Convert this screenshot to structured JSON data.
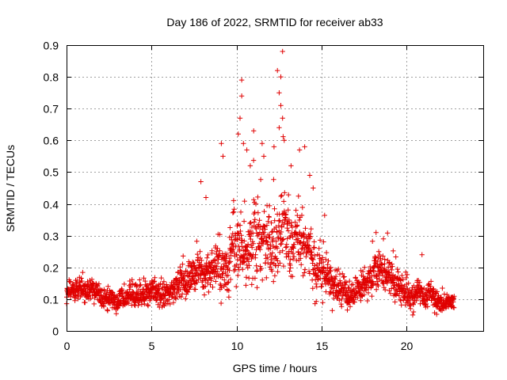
{
  "chart_data": {
    "type": "scatter",
    "title": "Day 186 of 2022, SRMTID for receiver ab33",
    "xlabel": "GPS time / hours",
    "ylabel": "SRMTID / TECUs",
    "xlim": [
      0,
      24.5
    ],
    "ylim": [
      0,
      0.9
    ],
    "xticks": [
      "0",
      "5",
      "10",
      "15",
      "20"
    ],
    "yticks": [
      "0",
      "0.1",
      "0.2",
      "0.3",
      "0.4",
      "0.5",
      "0.6",
      "0.7",
      "0.8",
      "0.9"
    ],
    "grid": true,
    "marker": "plus",
    "series_color": "#e00000",
    "profile": [
      [
        0.0,
        0.13,
        0.03
      ],
      [
        1.0,
        0.12,
        0.03
      ],
      [
        2.0,
        0.11,
        0.03
      ],
      [
        3.0,
        0.09,
        0.025
      ],
      [
        4.0,
        0.11,
        0.03
      ],
      [
        5.0,
        0.13,
        0.035
      ],
      [
        6.0,
        0.13,
        0.035
      ],
      [
        7.0,
        0.15,
        0.04
      ],
      [
        8.0,
        0.18,
        0.05
      ],
      [
        9.0,
        0.22,
        0.07
      ],
      [
        10.0,
        0.27,
        0.09
      ],
      [
        11.0,
        0.29,
        0.1
      ],
      [
        12.0,
        0.28,
        0.1
      ],
      [
        12.7,
        0.33,
        0.11
      ],
      [
        13.5,
        0.27,
        0.08
      ],
      [
        14.5,
        0.24,
        0.07
      ],
      [
        15.5,
        0.17,
        0.05
      ],
      [
        16.5,
        0.12,
        0.03
      ],
      [
        17.5,
        0.14,
        0.04
      ],
      [
        18.5,
        0.2,
        0.05
      ],
      [
        19.5,
        0.13,
        0.04
      ],
      [
        20.5,
        0.11,
        0.03
      ],
      [
        21.5,
        0.1,
        0.03
      ],
      [
        22.7,
        0.09,
        0.02
      ]
    ],
    "outliers": [
      [
        10.3,
        0.79
      ],
      [
        10.3,
        0.74
      ],
      [
        10.2,
        0.67
      ],
      [
        10.1,
        0.62
      ],
      [
        10.4,
        0.59
      ],
      [
        10.6,
        0.57
      ],
      [
        9.1,
        0.59
      ],
      [
        9.2,
        0.55
      ],
      [
        12.4,
        0.82
      ],
      [
        12.7,
        0.88
      ],
      [
        12.6,
        0.8
      ],
      [
        12.5,
        0.75
      ],
      [
        12.6,
        0.71
      ],
      [
        12.7,
        0.67
      ],
      [
        12.5,
        0.64
      ],
      [
        12.8,
        0.6
      ],
      [
        11.5,
        0.59
      ],
      [
        11.6,
        0.55
      ],
      [
        13.7,
        0.57
      ],
      [
        14.0,
        0.58
      ],
      [
        14.3,
        0.49
      ],
      [
        14.5,
        0.45
      ],
      [
        13.2,
        0.52
      ],
      [
        7.9,
        0.47
      ],
      [
        8.2,
        0.42
      ],
      [
        11.0,
        0.63
      ],
      [
        10.8,
        0.52
      ],
      [
        12.2,
        0.58
      ],
      [
        18.2,
        0.31
      ],
      [
        20.9,
        0.24
      ]
    ],
    "range": [
      0.0,
      22.8
    ],
    "step": 0.0115,
    "seed": 186
  }
}
